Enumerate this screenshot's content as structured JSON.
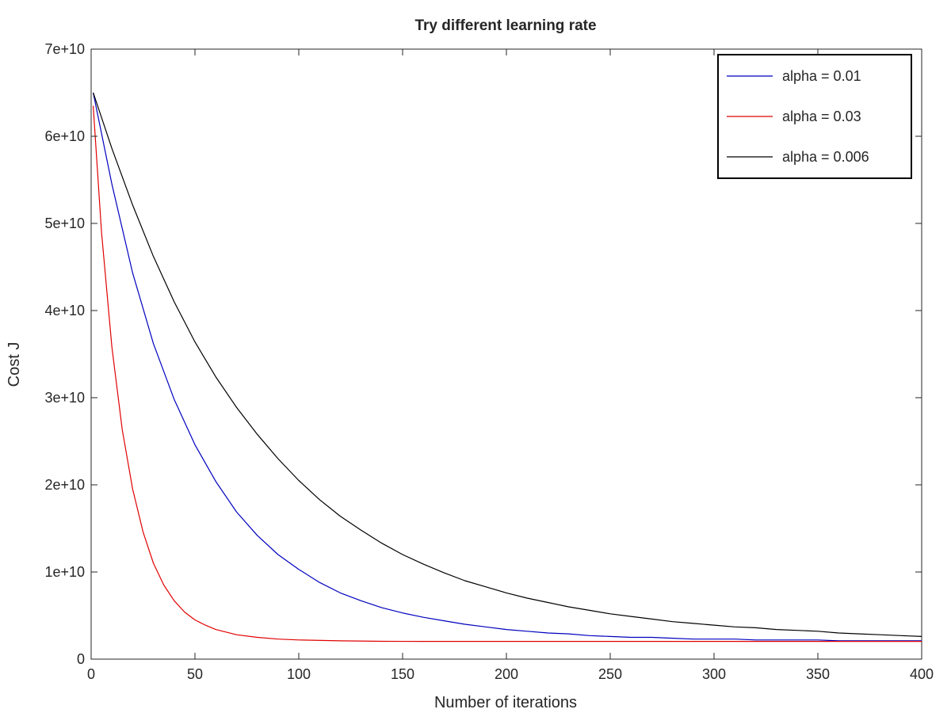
{
  "chart_data": {
    "type": "line",
    "title": "Try different learning rate",
    "xlabel": "Number of iterations",
    "ylabel": "Cost J",
    "xlim": [
      0,
      400
    ],
    "ylim": [
      0,
      70000000000
    ],
    "xticks": [
      0,
      50,
      100,
      150,
      200,
      250,
      300,
      350,
      400
    ],
    "xtick_labels": [
      "0",
      "50",
      "100",
      "150",
      "200",
      "250",
      "300",
      "350",
      "400"
    ],
    "yticks": [
      0,
      10000000000,
      20000000000,
      30000000000,
      40000000000,
      50000000000,
      60000000000,
      70000000000
    ],
    "ytick_labels": [
      "0",
      "1e+10",
      "2e+10",
      "3e+10",
      "4e+10",
      "5e+10",
      "6e+10",
      "7e+10"
    ],
    "grid": false,
    "legend_position": "top-right",
    "series": [
      {
        "name": "alpha = 0.01",
        "color": "#0000bf",
        "x": [
          1,
          10,
          20,
          30,
          40,
          50,
          60,
          70,
          80,
          90,
          100,
          110,
          120,
          130,
          140,
          150,
          160,
          170,
          180,
          190,
          200,
          210,
          220,
          230,
          240,
          250,
          260,
          270,
          280,
          290,
          300,
          310,
          320,
          330,
          340,
          350,
          360,
          370,
          380,
          390,
          400
        ],
        "y": [
          65000000000,
          54500000000,
          44300000000,
          36200000000,
          29800000000,
          24600000000,
          20400000000,
          16900000000,
          14200000000,
          12000000000,
          10300000000,
          8800000000,
          7600000000,
          6700000000,
          5900000000,
          5300000000,
          4800000000,
          4400000000,
          4000000000,
          3700000000,
          3400000000,
          3200000000,
          3000000000,
          2900000000,
          2700000000,
          2600000000,
          2500000000,
          2500000000,
          2400000000,
          2300000000,
          2300000000,
          2300000000,
          2200000000,
          2200000000,
          2200000000,
          2200000000,
          2100000000,
          2100000000,
          2100000000,
          2100000000,
          2100000000
        ]
      },
      {
        "name": "alpha = 0.03",
        "color": "#e00000",
        "x": [
          1,
          5,
          10,
          15,
          20,
          25,
          30,
          35,
          40,
          45,
          50,
          55,
          60,
          70,
          80,
          90,
          100,
          120,
          140,
          160,
          200,
          250,
          300,
          350,
          400
        ],
        "y": [
          63500000000,
          49000000000,
          35800000000,
          26300000000,
          19500000000,
          14600000000,
          11000000000,
          8500000000,
          6700000000,
          5400000000,
          4500000000,
          3900000000,
          3400000000,
          2800000000,
          2500000000,
          2300000000,
          2200000000,
          2100000000,
          2050000000,
          2040000000,
          2040000000,
          2040000000,
          2040000000,
          2040000000,
          2040000000
        ]
      },
      {
        "name": "alpha = 0.006",
        "color": "#000000",
        "x": [
          1,
          10,
          20,
          30,
          40,
          50,
          60,
          70,
          80,
          90,
          100,
          110,
          120,
          130,
          140,
          150,
          160,
          170,
          180,
          190,
          200,
          210,
          220,
          230,
          240,
          250,
          260,
          270,
          280,
          290,
          300,
          310,
          320,
          330,
          340,
          350,
          360,
          370,
          380,
          390,
          400
        ],
        "y": [
          65000000000,
          58600000000,
          52100000000,
          46200000000,
          41000000000,
          36400000000,
          32400000000,
          28900000000,
          25800000000,
          23000000000,
          20500000000,
          18300000000,
          16400000000,
          14800000000,
          13300000000,
          12000000000,
          10900000000,
          9900000000,
          9000000000,
          8300000000,
          7600000000,
          7000000000,
          6500000000,
          6000000000,
          5600000000,
          5200000000,
          4900000000,
          4600000000,
          4300000000,
          4100000000,
          3900000000,
          3700000000,
          3600000000,
          3400000000,
          3300000000,
          3200000000,
          3000000000,
          2900000000,
          2800000000,
          2700000000,
          2600000000
        ]
      }
    ]
  }
}
